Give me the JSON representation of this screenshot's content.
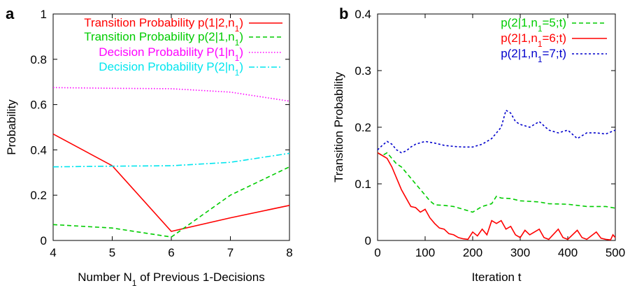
{
  "chart_data": [
    {
      "panel": "a",
      "type": "line",
      "xlabel": "Number N1 of Previous 1-Decisions",
      "ylabel": "Probability",
      "xlim": [
        4,
        8
      ],
      "ylim": [
        0,
        1
      ],
      "xticks": [
        4,
        5,
        6,
        7,
        8
      ],
      "yticks": [
        0,
        0.2,
        0.4,
        0.6,
        0.8,
        1
      ],
      "grid": false,
      "legend_position": "top-right",
      "series": [
        {
          "name": "Transition Probability p(1|2,n1)",
          "color": "#ff0000",
          "dash": "solid",
          "x": [
            4,
            5,
            6,
            7,
            8
          ],
          "values": [
            0.47,
            0.33,
            0.04,
            0.1,
            0.155
          ]
        },
        {
          "name": "Transition Probability p(2|1,n1)",
          "color": "#00cc00",
          "dash": "dashed",
          "x": [
            4,
            5,
            6,
            7,
            8
          ],
          "values": [
            0.07,
            0.055,
            0.015,
            0.2,
            0.325
          ]
        },
        {
          "name": "Decision Probability P(1|n1)",
          "color": "#ff00ff",
          "dash": "dotted",
          "x": [
            4,
            5,
            6,
            7,
            8
          ],
          "values": [
            0.675,
            0.672,
            0.67,
            0.655,
            0.615
          ]
        },
        {
          "name": "Decision Probability P(2|n1)",
          "color": "#00e5ee",
          "dash": "dashdot",
          "x": [
            4,
            5,
            6,
            7,
            8
          ],
          "values": [
            0.325,
            0.328,
            0.33,
            0.345,
            0.385
          ]
        }
      ]
    },
    {
      "panel": "b",
      "type": "line",
      "xlabel": "Iteration t",
      "ylabel": "Transition Probability",
      "xlim": [
        0,
        500
      ],
      "ylim": [
        0,
        0.4
      ],
      "xticks": [
        0,
        100,
        200,
        300,
        400,
        500
      ],
      "yticks": [
        0,
        0.1,
        0.2,
        0.3,
        0.4
      ],
      "grid": false,
      "legend_position": "top-right",
      "series": [
        {
          "name": "p(2|1,n1=5;t)",
          "color": "#00cc00",
          "dash": "dashed",
          "x": [
            0,
            10,
            20,
            30,
            40,
            50,
            60,
            70,
            80,
            90,
            100,
            110,
            120,
            140,
            160,
            180,
            200,
            210,
            220,
            240,
            250,
            260,
            280,
            300,
            340,
            360,
            400,
            440,
            480,
            500
          ],
          "values": [
            0.155,
            0.15,
            0.155,
            0.145,
            0.135,
            0.13,
            0.12,
            0.11,
            0.1,
            0.09,
            0.08,
            0.07,
            0.063,
            0.062,
            0.06,
            0.055,
            0.05,
            0.055,
            0.06,
            0.065,
            0.078,
            0.075,
            0.074,
            0.07,
            0.068,
            0.065,
            0.064,
            0.06,
            0.06,
            0.057
          ]
        },
        {
          "name": "p(2|1,n1=6;t)",
          "color": "#ff0000",
          "dash": "solid",
          "x": [
            0,
            10,
            20,
            30,
            40,
            50,
            60,
            70,
            80,
            90,
            100,
            110,
            120,
            130,
            140,
            150,
            160,
            170,
            180,
            190,
            200,
            210,
            220,
            230,
            240,
            250,
            260,
            270,
            280,
            290,
            300,
            310,
            320,
            340,
            350,
            360,
            380,
            390,
            400,
            420,
            430,
            440,
            460,
            470,
            480,
            490,
            495,
            500
          ],
          "values": [
            0.155,
            0.15,
            0.145,
            0.13,
            0.11,
            0.09,
            0.075,
            0.06,
            0.058,
            0.05,
            0.055,
            0.04,
            0.03,
            0.022,
            0.02,
            0.012,
            0.01,
            0.005,
            0.003,
            0.002,
            0.015,
            0.008,
            0.02,
            0.01,
            0.035,
            0.03,
            0.035,
            0.02,
            0.025,
            0.01,
            0.005,
            0.018,
            0.01,
            0.02,
            0.005,
            0.002,
            0.02,
            0.005,
            0.002,
            0.018,
            0.005,
            0.002,
            0.015,
            0.004,
            0.002,
            0.001,
            0.01,
            0.005
          ]
        },
        {
          "name": "p(2|1,n1=7;t)",
          "color": "#0000cc",
          "dash": "dotted",
          "x": [
            0,
            10,
            20,
            30,
            40,
            50,
            60,
            70,
            80,
            100,
            120,
            140,
            160,
            180,
            200,
            220,
            230,
            240,
            250,
            260,
            270,
            280,
            290,
            300,
            320,
            340,
            360,
            380,
            400,
            420,
            440,
            460,
            480,
            500
          ],
          "values": [
            0.16,
            0.168,
            0.175,
            0.17,
            0.16,
            0.155,
            0.158,
            0.165,
            0.17,
            0.175,
            0.172,
            0.168,
            0.166,
            0.165,
            0.165,
            0.17,
            0.175,
            0.18,
            0.19,
            0.2,
            0.23,
            0.225,
            0.21,
            0.205,
            0.2,
            0.21,
            0.195,
            0.19,
            0.195,
            0.18,
            0.19,
            0.19,
            0.188,
            0.195
          ]
        }
      ]
    }
  ],
  "panels": {
    "a": {
      "letter": "a",
      "legend": [
        {
          "prefix": "Transition Probability p(1|2,n",
          "sub": "1",
          "suffix": ")"
        },
        {
          "prefix": "Transition Probability p(2|1,n",
          "sub": "1",
          "suffix": ")"
        },
        {
          "prefix": "Decision Probability P(1|n",
          "sub": "1",
          "suffix": ")"
        },
        {
          "prefix": "Decision Probability P(2|n",
          "sub": "1",
          "suffix": ")"
        }
      ],
      "xlabel": {
        "prefix": "Number N",
        "sub": "1",
        "suffix": " of Previous 1-Decisions"
      },
      "ylabel": "Probability"
    },
    "b": {
      "letter": "b",
      "legend": [
        {
          "prefix": "p(2|1,n",
          "sub": "1",
          "suffix": "=5;t)"
        },
        {
          "prefix": "p(2|1,n",
          "sub": "1",
          "suffix": "=6;t)"
        },
        {
          "prefix": "p(2|1,n",
          "sub": "1",
          "suffix": "=7;t)"
        }
      ],
      "xlabel": {
        "prefix": "Iteration t",
        "sub": "",
        "suffix": ""
      },
      "ylabel": "Transition Probability"
    }
  }
}
